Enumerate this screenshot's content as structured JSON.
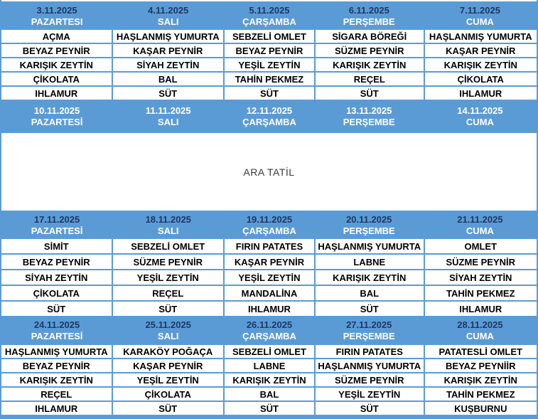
{
  "document_title": "Kasım 2025 Kahvaltı Menüsü Tablosu",
  "colors": {
    "header_bg": "#5B9BD5",
    "grid_border": "#5B9BD5",
    "date_text_dark": "#1F3864",
    "date_text_week2": "#FFFFFF",
    "day_text": "#FFFFFF",
    "cell_text": "#000000"
  },
  "holiday": {
    "label": "ARA TATİL"
  },
  "weeks": [
    {
      "days": [
        {
          "date": "3.11.2025",
          "day": "PAZARTESI"
        },
        {
          "date": "4.11.2025",
          "day": "SALI"
        },
        {
          "date": "5.11.2025",
          "day": "ÇARŞAMBA"
        },
        {
          "date": "6.11.2025",
          "day": "PERŞEMBE"
        },
        {
          "date": "7.11.2025",
          "day": "CUMA"
        }
      ],
      "menu": [
        [
          "AÇMA",
          "HAŞLANMIŞ YUMURTA",
          "SEBZELİ OMLET",
          "SİGARA BÖREĞİ",
          "HAŞLANMIŞ YUMURTA"
        ],
        [
          "BEYAZ PEYNİR",
          "KAŞAR PEYNİR",
          "BEYAZ PEYNİR",
          "SÜZME PEYNİR",
          "KAŞAR PEYNİR"
        ],
        [
          "KARIŞIK ZEYTİN",
          "SİYAH ZEYTİN",
          "YEŞİL ZEYTİN",
          "KARIŞIK ZEYTİN",
          "KARIŞIK ZEYTİN"
        ],
        [
          "ÇİKOLATA",
          "BAL",
          "TAHİN PEKMEZ",
          "REÇEL",
          "ÇİKOLATA"
        ],
        [
          "IHLAMUR",
          "SÜT",
          "SÜT",
          "SÜT",
          "IHLAMUR"
        ]
      ]
    },
    {
      "days": [
        {
          "date": "10.11.2025",
          "day": "PAZARTESİ"
        },
        {
          "date": "11.11.2025",
          "day": "SALI"
        },
        {
          "date": "12.11.2025",
          "day": "ÇARŞAMBA"
        },
        {
          "date": "13.11.2025",
          "day": "PERŞEMBE"
        },
        {
          "date": "14.11.2025",
          "day": "CUMA"
        }
      ],
      "menu": []
    },
    {
      "days": [
        {
          "date": "17.11.2025",
          "day": "PAZARTESİ"
        },
        {
          "date": "18.11.2025",
          "day": "SALI"
        },
        {
          "date": "19.11.2025",
          "day": "ÇARŞAMBA"
        },
        {
          "date": "20.11.2025",
          "day": "PERŞEMBE"
        },
        {
          "date": "21.11.2025",
          "day": "CUMA"
        }
      ],
      "menu": [
        [
          "SİMİT",
          "SEBZELİ OMLET",
          "FIRIN PATATES",
          "HAŞLANMIŞ YUMURTA",
          "OMLET"
        ],
        [
          "BEYAZ PEYNİR",
          "SÜZME PEYNİR",
          "KAŞAR PEYNİR",
          "LABNE",
          "SÜZME PEYNİR"
        ],
        [
          "SİYAH ZEYTİN",
          "YEŞİL ZEYTİN",
          "YEŞİL ZEYTİN",
          "KARIŞIK ZEYTİN",
          "SİYAH ZEYTİN"
        ],
        [
          "ÇİKOLATA",
          "REÇEL",
          "MANDALİNA",
          "BAL",
          "TAHİN PEKMEZ"
        ],
        [
          "SÜT",
          "SÜT",
          "IHLAMUR",
          "SÜT",
          "IHLAMUR"
        ]
      ]
    },
    {
      "days": [
        {
          "date": "24.11.2025",
          "day": "PAZARTESİ"
        },
        {
          "date": "25.11.2025",
          "day": "SALI"
        },
        {
          "date": "26.11.2025",
          "day": "ÇARŞAMBA"
        },
        {
          "date": "27.11.2025",
          "day": "PERŞEMBE"
        },
        {
          "date": "28.11.2025",
          "day": "CUMA"
        }
      ],
      "menu": [
        [
          "HAŞLANMIŞ YUMURTA",
          "KARAKÖY POĞAÇA",
          "SEBZELİ OMLET",
          "FIRIN PATATES",
          "PATATESLİ OMLET"
        ],
        [
          "BEYAZ PEYNİR",
          "KAŞAR PEYNİR",
          "LABNE",
          "HAŞLANMIŞ YUMURTA",
          "BEYAZ PEYNİİR"
        ],
        [
          "KARIŞIK ZEYTİN",
          "YEŞİL ZEYTİN",
          "KARIŞIK ZEYTİN",
          "SÜZME PEYNİR",
          "KARIŞIK ZEYTİN"
        ],
        [
          "REÇEL",
          "ÇİKOLATA",
          "BAL",
          "YEŞİL ZEYTİN",
          "TAHİN PEKMEZ"
        ],
        [
          "IHLAMUR",
          "SÜT",
          "SÜT",
          "SÜT",
          "KUŞBURNU"
        ]
      ]
    }
  ]
}
